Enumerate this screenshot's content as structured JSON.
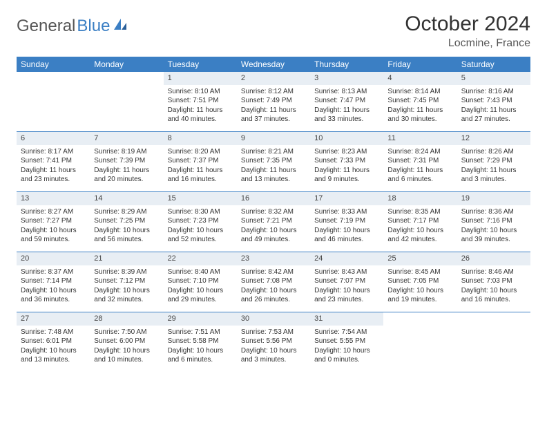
{
  "logo": {
    "text_gray": "General",
    "text_blue": "Blue"
  },
  "title": {
    "month": "October 2024",
    "location": "Locmine, France"
  },
  "colors": {
    "header_bg": "#3b7fc4",
    "header_fg": "#ffffff",
    "daynum_bg": "#e8eef4",
    "week_border": "#3b7fc4",
    "text": "#333333",
    "background": "#ffffff"
  },
  "day_names": [
    "Sunday",
    "Monday",
    "Tuesday",
    "Wednesday",
    "Thursday",
    "Friday",
    "Saturday"
  ],
  "weeks": [
    [
      {
        "n": "",
        "sr": "",
        "ss": "",
        "dl": ""
      },
      {
        "n": "",
        "sr": "",
        "ss": "",
        "dl": ""
      },
      {
        "n": "1",
        "sr": "Sunrise: 8:10 AM",
        "ss": "Sunset: 7:51 PM",
        "dl": "Daylight: 11 hours and 40 minutes."
      },
      {
        "n": "2",
        "sr": "Sunrise: 8:12 AM",
        "ss": "Sunset: 7:49 PM",
        "dl": "Daylight: 11 hours and 37 minutes."
      },
      {
        "n": "3",
        "sr": "Sunrise: 8:13 AM",
        "ss": "Sunset: 7:47 PM",
        "dl": "Daylight: 11 hours and 33 minutes."
      },
      {
        "n": "4",
        "sr": "Sunrise: 8:14 AM",
        "ss": "Sunset: 7:45 PM",
        "dl": "Daylight: 11 hours and 30 minutes."
      },
      {
        "n": "5",
        "sr": "Sunrise: 8:16 AM",
        "ss": "Sunset: 7:43 PM",
        "dl": "Daylight: 11 hours and 27 minutes."
      }
    ],
    [
      {
        "n": "6",
        "sr": "Sunrise: 8:17 AM",
        "ss": "Sunset: 7:41 PM",
        "dl": "Daylight: 11 hours and 23 minutes."
      },
      {
        "n": "7",
        "sr": "Sunrise: 8:19 AM",
        "ss": "Sunset: 7:39 PM",
        "dl": "Daylight: 11 hours and 20 minutes."
      },
      {
        "n": "8",
        "sr": "Sunrise: 8:20 AM",
        "ss": "Sunset: 7:37 PM",
        "dl": "Daylight: 11 hours and 16 minutes."
      },
      {
        "n": "9",
        "sr": "Sunrise: 8:21 AM",
        "ss": "Sunset: 7:35 PM",
        "dl": "Daylight: 11 hours and 13 minutes."
      },
      {
        "n": "10",
        "sr": "Sunrise: 8:23 AM",
        "ss": "Sunset: 7:33 PM",
        "dl": "Daylight: 11 hours and 9 minutes."
      },
      {
        "n": "11",
        "sr": "Sunrise: 8:24 AM",
        "ss": "Sunset: 7:31 PM",
        "dl": "Daylight: 11 hours and 6 minutes."
      },
      {
        "n": "12",
        "sr": "Sunrise: 8:26 AM",
        "ss": "Sunset: 7:29 PM",
        "dl": "Daylight: 11 hours and 3 minutes."
      }
    ],
    [
      {
        "n": "13",
        "sr": "Sunrise: 8:27 AM",
        "ss": "Sunset: 7:27 PM",
        "dl": "Daylight: 10 hours and 59 minutes."
      },
      {
        "n": "14",
        "sr": "Sunrise: 8:29 AM",
        "ss": "Sunset: 7:25 PM",
        "dl": "Daylight: 10 hours and 56 minutes."
      },
      {
        "n": "15",
        "sr": "Sunrise: 8:30 AM",
        "ss": "Sunset: 7:23 PM",
        "dl": "Daylight: 10 hours and 52 minutes."
      },
      {
        "n": "16",
        "sr": "Sunrise: 8:32 AM",
        "ss": "Sunset: 7:21 PM",
        "dl": "Daylight: 10 hours and 49 minutes."
      },
      {
        "n": "17",
        "sr": "Sunrise: 8:33 AM",
        "ss": "Sunset: 7:19 PM",
        "dl": "Daylight: 10 hours and 46 minutes."
      },
      {
        "n": "18",
        "sr": "Sunrise: 8:35 AM",
        "ss": "Sunset: 7:17 PM",
        "dl": "Daylight: 10 hours and 42 minutes."
      },
      {
        "n": "19",
        "sr": "Sunrise: 8:36 AM",
        "ss": "Sunset: 7:16 PM",
        "dl": "Daylight: 10 hours and 39 minutes."
      }
    ],
    [
      {
        "n": "20",
        "sr": "Sunrise: 8:37 AM",
        "ss": "Sunset: 7:14 PM",
        "dl": "Daylight: 10 hours and 36 minutes."
      },
      {
        "n": "21",
        "sr": "Sunrise: 8:39 AM",
        "ss": "Sunset: 7:12 PM",
        "dl": "Daylight: 10 hours and 32 minutes."
      },
      {
        "n": "22",
        "sr": "Sunrise: 8:40 AM",
        "ss": "Sunset: 7:10 PM",
        "dl": "Daylight: 10 hours and 29 minutes."
      },
      {
        "n": "23",
        "sr": "Sunrise: 8:42 AM",
        "ss": "Sunset: 7:08 PM",
        "dl": "Daylight: 10 hours and 26 minutes."
      },
      {
        "n": "24",
        "sr": "Sunrise: 8:43 AM",
        "ss": "Sunset: 7:07 PM",
        "dl": "Daylight: 10 hours and 23 minutes."
      },
      {
        "n": "25",
        "sr": "Sunrise: 8:45 AM",
        "ss": "Sunset: 7:05 PM",
        "dl": "Daylight: 10 hours and 19 minutes."
      },
      {
        "n": "26",
        "sr": "Sunrise: 8:46 AM",
        "ss": "Sunset: 7:03 PM",
        "dl": "Daylight: 10 hours and 16 minutes."
      }
    ],
    [
      {
        "n": "27",
        "sr": "Sunrise: 7:48 AM",
        "ss": "Sunset: 6:01 PM",
        "dl": "Daylight: 10 hours and 13 minutes."
      },
      {
        "n": "28",
        "sr": "Sunrise: 7:50 AM",
        "ss": "Sunset: 6:00 PM",
        "dl": "Daylight: 10 hours and 10 minutes."
      },
      {
        "n": "29",
        "sr": "Sunrise: 7:51 AM",
        "ss": "Sunset: 5:58 PM",
        "dl": "Daylight: 10 hours and 6 minutes."
      },
      {
        "n": "30",
        "sr": "Sunrise: 7:53 AM",
        "ss": "Sunset: 5:56 PM",
        "dl": "Daylight: 10 hours and 3 minutes."
      },
      {
        "n": "31",
        "sr": "Sunrise: 7:54 AM",
        "ss": "Sunset: 5:55 PM",
        "dl": "Daylight: 10 hours and 0 minutes."
      },
      {
        "n": "",
        "sr": "",
        "ss": "",
        "dl": ""
      },
      {
        "n": "",
        "sr": "",
        "ss": "",
        "dl": ""
      }
    ]
  ]
}
